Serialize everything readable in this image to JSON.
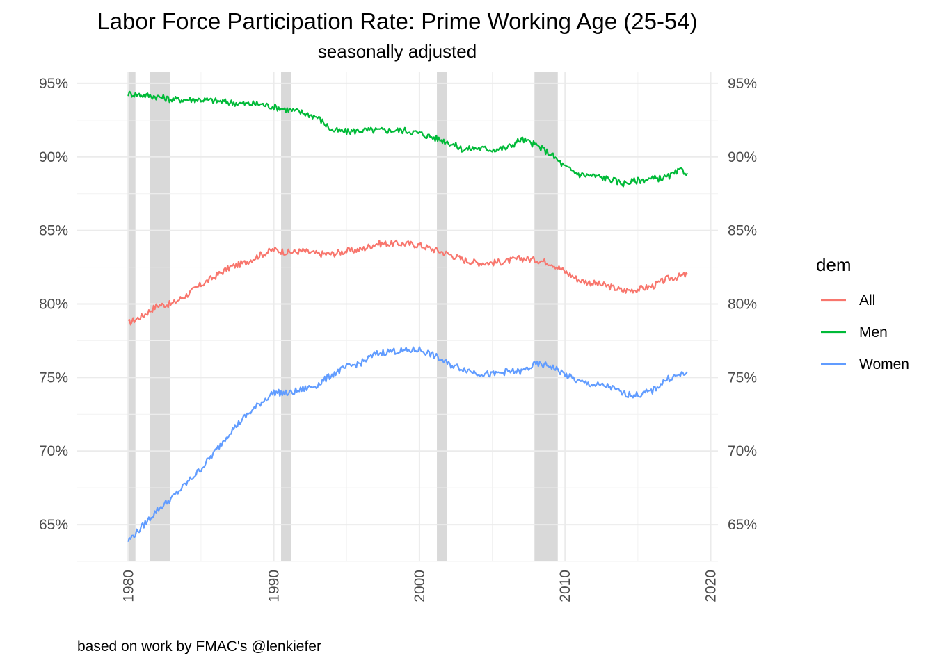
{
  "chart_data": {
    "type": "line",
    "title": "Labor Force Participation Rate: Prime Working Age (25-54)",
    "subtitle": "seasonally adjusted",
    "caption": "based on work by FMAC's @lenkiefer",
    "xlabel": "",
    "ylabel": "",
    "xlim": [
      1976.5,
      2020.5
    ],
    "ylim": [
      62.5,
      95.8
    ],
    "x_ticks": [
      1980,
      1990,
      2000,
      2010,
      2020
    ],
    "x_tick_labels": [
      "1980",
      "1990",
      "2000",
      "2010",
      "2020"
    ],
    "y_ticks": [
      65,
      70,
      75,
      80,
      85,
      90,
      95
    ],
    "y_tick_labels": [
      "65%",
      "70%",
      "75%",
      "80%",
      "85%",
      "90%",
      "95%"
    ],
    "secondary_y_axis": true,
    "grid": true,
    "legend": {
      "title": "dem",
      "position": "right"
    },
    "recessions": [
      [
        1980.0,
        1980.5
      ],
      [
        1981.5,
        1982.9
      ],
      [
        1990.5,
        1991.2
      ],
      [
        2001.2,
        2001.9
      ],
      [
        2007.9,
        2009.5
      ]
    ],
    "series": [
      {
        "name": "All",
        "color": "#F8766D",
        "points": [
          [
            1980.0,
            78.7
          ],
          [
            1981.0,
            79.2
          ],
          [
            1982.0,
            79.9
          ],
          [
            1983.0,
            80.0
          ],
          [
            1984.0,
            80.6
          ],
          [
            1985.0,
            81.3
          ],
          [
            1986.0,
            81.9
          ],
          [
            1987.0,
            82.5
          ],
          [
            1988.0,
            82.8
          ],
          [
            1989.0,
            83.3
          ],
          [
            1990.0,
            83.7
          ],
          [
            1991.0,
            83.5
          ],
          [
            1992.0,
            83.6
          ],
          [
            1993.0,
            83.4
          ],
          [
            1994.0,
            83.4
          ],
          [
            1995.0,
            83.6
          ],
          [
            1996.0,
            83.7
          ],
          [
            1997.0,
            84.1
          ],
          [
            1998.0,
            84.1
          ],
          [
            1999.0,
            84.1
          ],
          [
            2000.0,
            84.0
          ],
          [
            2001.0,
            83.7
          ],
          [
            2002.0,
            83.4
          ],
          [
            2003.0,
            83.0
          ],
          [
            2004.0,
            82.8
          ],
          [
            2005.0,
            82.8
          ],
          [
            2006.0,
            82.9
          ],
          [
            2007.0,
            83.1
          ],
          [
            2008.0,
            83.0
          ],
          [
            2009.0,
            82.8
          ],
          [
            2010.0,
            82.2
          ],
          [
            2011.0,
            81.6
          ],
          [
            2012.0,
            81.4
          ],
          [
            2013.0,
            81.2
          ],
          [
            2014.0,
            80.9
          ],
          [
            2015.0,
            81.0
          ],
          [
            2016.0,
            81.2
          ],
          [
            2017.0,
            81.7
          ],
          [
            2018.0,
            81.9
          ],
          [
            2018.4,
            82.0
          ]
        ]
      },
      {
        "name": "Men",
        "color": "#00BA38",
        "points": [
          [
            1980.0,
            94.3
          ],
          [
            1981.0,
            94.2
          ],
          [
            1982.0,
            94.1
          ],
          [
            1983.0,
            93.9
          ],
          [
            1984.0,
            93.9
          ],
          [
            1985.0,
            93.9
          ],
          [
            1986.0,
            93.8
          ],
          [
            1987.0,
            93.7
          ],
          [
            1988.0,
            93.6
          ],
          [
            1989.0,
            93.6
          ],
          [
            1990.0,
            93.4
          ],
          [
            1991.0,
            93.2
          ],
          [
            1992.0,
            93.0
          ],
          [
            1993.0,
            92.7
          ],
          [
            1994.0,
            91.8
          ],
          [
            1995.0,
            91.7
          ],
          [
            1996.0,
            91.8
          ],
          [
            1997.0,
            91.8
          ],
          [
            1998.0,
            91.8
          ],
          [
            1999.0,
            91.8
          ],
          [
            2000.0,
            91.6
          ],
          [
            2001.0,
            91.3
          ],
          [
            2002.0,
            91.0
          ],
          [
            2003.0,
            90.5
          ],
          [
            2004.0,
            90.6
          ],
          [
            2005.0,
            90.5
          ],
          [
            2006.0,
            90.6
          ],
          [
            2007.0,
            91.2
          ],
          [
            2008.0,
            90.8
          ],
          [
            2009.0,
            90.2
          ],
          [
            2010.0,
            89.3
          ],
          [
            2011.0,
            88.8
          ],
          [
            2012.0,
            88.7
          ],
          [
            2013.0,
            88.5
          ],
          [
            2014.0,
            88.2
          ],
          [
            2015.0,
            88.4
          ],
          [
            2016.0,
            88.5
          ],
          [
            2017.0,
            88.6
          ],
          [
            2018.0,
            89.1
          ],
          [
            2018.4,
            88.9
          ]
        ]
      },
      {
        "name": "Women",
        "color": "#619CFF",
        "points": [
          [
            1980.0,
            63.9
          ],
          [
            1981.0,
            64.9
          ],
          [
            1982.0,
            66.0
          ],
          [
            1983.0,
            66.8
          ],
          [
            1984.0,
            67.8
          ],
          [
            1985.0,
            68.8
          ],
          [
            1986.0,
            70.0
          ],
          [
            1987.0,
            71.3
          ],
          [
            1988.0,
            72.3
          ],
          [
            1989.0,
            73.2
          ],
          [
            1990.0,
            74.0
          ],
          [
            1991.0,
            73.9
          ],
          [
            1992.0,
            74.2
          ],
          [
            1993.0,
            74.5
          ],
          [
            1994.0,
            75.2
          ],
          [
            1995.0,
            75.7
          ],
          [
            1996.0,
            76.0
          ],
          [
            1997.0,
            76.6
          ],
          [
            1998.0,
            76.8
          ],
          [
            1999.0,
            76.8
          ],
          [
            2000.0,
            76.9
          ],
          [
            2001.0,
            76.5
          ],
          [
            2002.0,
            75.9
          ],
          [
            2003.0,
            75.6
          ],
          [
            2004.0,
            75.3
          ],
          [
            2005.0,
            75.2
          ],
          [
            2006.0,
            75.4
          ],
          [
            2007.0,
            75.4
          ],
          [
            2008.0,
            75.9
          ],
          [
            2009.0,
            75.8
          ],
          [
            2010.0,
            75.2
          ],
          [
            2011.0,
            74.7
          ],
          [
            2012.0,
            74.5
          ],
          [
            2013.0,
            74.4
          ],
          [
            2014.0,
            73.9
          ],
          [
            2015.0,
            73.8
          ],
          [
            2016.0,
            74.1
          ],
          [
            2017.0,
            74.9
          ],
          [
            2018.0,
            75.2
          ],
          [
            2018.4,
            75.4
          ]
        ]
      }
    ]
  }
}
